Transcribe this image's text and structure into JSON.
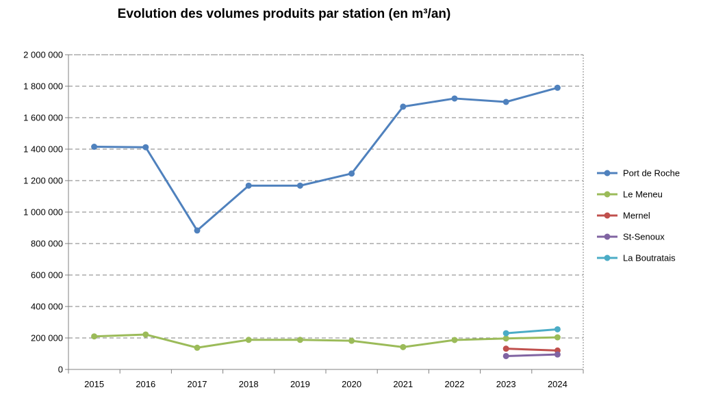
{
  "chart_data": {
    "type": "line",
    "title": "Evolution des volumes produits par station (en m³/an)",
    "xlabel": "",
    "ylabel": "",
    "categories": [
      "2015",
      "2016",
      "2017",
      "2018",
      "2019",
      "2020",
      "2021",
      "2022",
      "2023",
      "2024"
    ],
    "ylim": [
      0,
      2000000
    ],
    "yticks": [
      0,
      200000,
      400000,
      600000,
      800000,
      1000000,
      1200000,
      1400000,
      1600000,
      1800000,
      2000000
    ],
    "ytick_labels": [
      "0",
      "200 000",
      "400 000",
      "600 000",
      "800 000",
      "1 000 000",
      "1 200 000",
      "1 400 000",
      "1 600 000",
      "1 800 000",
      "2 000 000"
    ],
    "grid": "horizontal dashed",
    "legend_position": "right",
    "series": [
      {
        "name": "Port de Roche",
        "color": "#4F81BD",
        "values": [
          1415000,
          1412000,
          883000,
          1168000,
          1168000,
          1245000,
          1670000,
          1722000,
          1700000,
          1790000
        ]
      },
      {
        "name": "Le Meneu",
        "color": "#9BBB59",
        "values": [
          210000,
          222000,
          138000,
          188000,
          188000,
          182000,
          142000,
          187000,
          197000,
          204000
        ]
      },
      {
        "name": "Mernel",
        "color": "#C0504D",
        "values": [
          null,
          null,
          null,
          null,
          null,
          null,
          null,
          null,
          132000,
          120000
        ]
      },
      {
        "name": "St-Senoux",
        "color": "#8064A2",
        "values": [
          null,
          null,
          null,
          null,
          null,
          null,
          null,
          null,
          85000,
          95000
        ]
      },
      {
        "name": "La Boutratais",
        "color": "#4BACC6",
        "values": [
          null,
          null,
          null,
          null,
          null,
          null,
          null,
          null,
          230000,
          255000
        ]
      }
    ]
  }
}
